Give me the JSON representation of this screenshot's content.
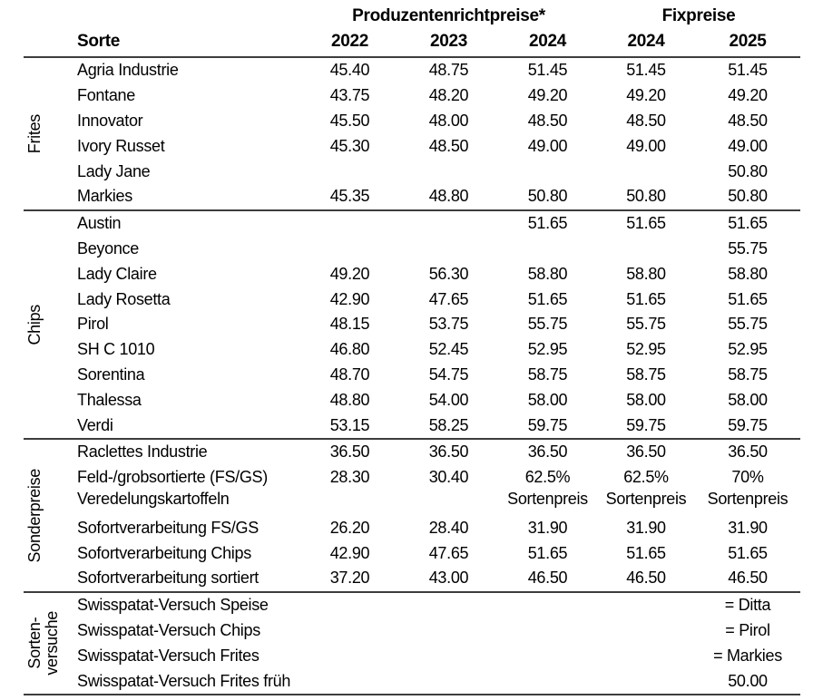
{
  "table": {
    "column_groups": [
      {
        "label": "Produzentenrichtpreise*",
        "span": 3
      },
      {
        "label": "Fixpreise",
        "span": 2
      }
    ],
    "sorte_header": "Sorte",
    "year_headers": [
      "2022",
      "2023",
      "2024",
      "2024",
      "2025"
    ],
    "sections": [
      {
        "category": "Frites",
        "rows": [
          {
            "sorte": "Agria Industrie",
            "values": [
              "45.40",
              "48.75",
              "51.45",
              "51.45",
              "51.45"
            ]
          },
          {
            "sorte": "Fontane",
            "values": [
              "43.75",
              "48.20",
              "49.20",
              "49.20",
              "49.20"
            ]
          },
          {
            "sorte": "Innovator",
            "values": [
              "45.50",
              "48.00",
              "48.50",
              "48.50",
              "48.50"
            ]
          },
          {
            "sorte": "Ivory Russet",
            "values": [
              "45.30",
              "48.50",
              "49.00",
              "49.00",
              "49.00"
            ]
          },
          {
            "sorte": "Lady Jane",
            "values": [
              "",
              "",
              "",
              "",
              "50.80"
            ]
          },
          {
            "sorte": "Markies",
            "values": [
              "45.35",
              "48.80",
              "50.80",
              "50.80",
              "50.80"
            ]
          }
        ]
      },
      {
        "category": "Chips",
        "rows": [
          {
            "sorte": "Austin",
            "values": [
              "",
              "",
              "51.65",
              "51.65",
              "51.65"
            ]
          },
          {
            "sorte": "Beyonce",
            "values": [
              "",
              "",
              "",
              "",
              "55.75"
            ]
          },
          {
            "sorte": "Lady Claire",
            "values": [
              "49.20",
              "56.30",
              "58.80",
              "58.80",
              "58.80"
            ]
          },
          {
            "sorte": "Lady Rosetta",
            "values": [
              "42.90",
              "47.65",
              "51.65",
              "51.65",
              "51.65"
            ]
          },
          {
            "sorte": "Pirol",
            "values": [
              "48.15",
              "53.75",
              "55.75",
              "55.75",
              "55.75"
            ]
          },
          {
            "sorte": "SH C 1010",
            "values": [
              "46.80",
              "52.45",
              "52.95",
              "52.95",
              "52.95"
            ]
          },
          {
            "sorte": "Sorentina",
            "values": [
              "48.70",
              "54.75",
              "58.75",
              "58.75",
              "58.75"
            ]
          },
          {
            "sorte": "Thalessa",
            "values": [
              "48.80",
              "54.00",
              "58.00",
              "58.00",
              "58.00"
            ]
          },
          {
            "sorte": "Verdi",
            "values": [
              "53.15",
              "58.25",
              "59.75",
              "59.75",
              "59.75"
            ]
          }
        ]
      },
      {
        "category": "Sonderpreise",
        "rows": [
          {
            "sorte": "Raclettes Industrie",
            "values": [
              "36.50",
              "36.50",
              "36.50",
              "36.50",
              "36.50"
            ]
          },
          {
            "sorte": "Feld-/grobsortierte (FS/GS)\nVeredelungskartoffeln",
            "multiline": true,
            "values": [
              "28.30",
              "30.40",
              "62.5%\nSortenpreis",
              "62.5%\nSortenpreis",
              "70%\nSortenpreis"
            ]
          },
          {
            "sorte": "Sofortverarbeitung FS/GS",
            "values": [
              "26.20",
              "28.40",
              "31.90",
              "31.90",
              "31.90"
            ]
          },
          {
            "sorte": "Sofortverarbeitung Chips",
            "values": [
              "42.90",
              "47.65",
              "51.65",
              "51.65",
              "51.65"
            ]
          },
          {
            "sorte": "Sofortverarbeitung sortiert",
            "values": [
              "37.20",
              "43.00",
              "46.50",
              "46.50",
              "46.50"
            ]
          }
        ]
      },
      {
        "category": "Sorten-\nversuche",
        "rows": [
          {
            "sorte": "Swisspatat-Versuch Speise",
            "values": [
              "",
              "",
              "",
              "",
              "= Ditta"
            ]
          },
          {
            "sorte": "Swisspatat-Versuch Chips",
            "values": [
              "",
              "",
              "",
              "",
              "= Pirol"
            ]
          },
          {
            "sorte": "Swisspatat-Versuch Frites",
            "values": [
              "",
              "",
              "",
              "",
              "= Markies"
            ]
          },
          {
            "sorte": "Swisspatat-Versuch Frites früh",
            "values": [
              "",
              "",
              "",
              "",
              "50.00"
            ]
          }
        ]
      }
    ]
  }
}
